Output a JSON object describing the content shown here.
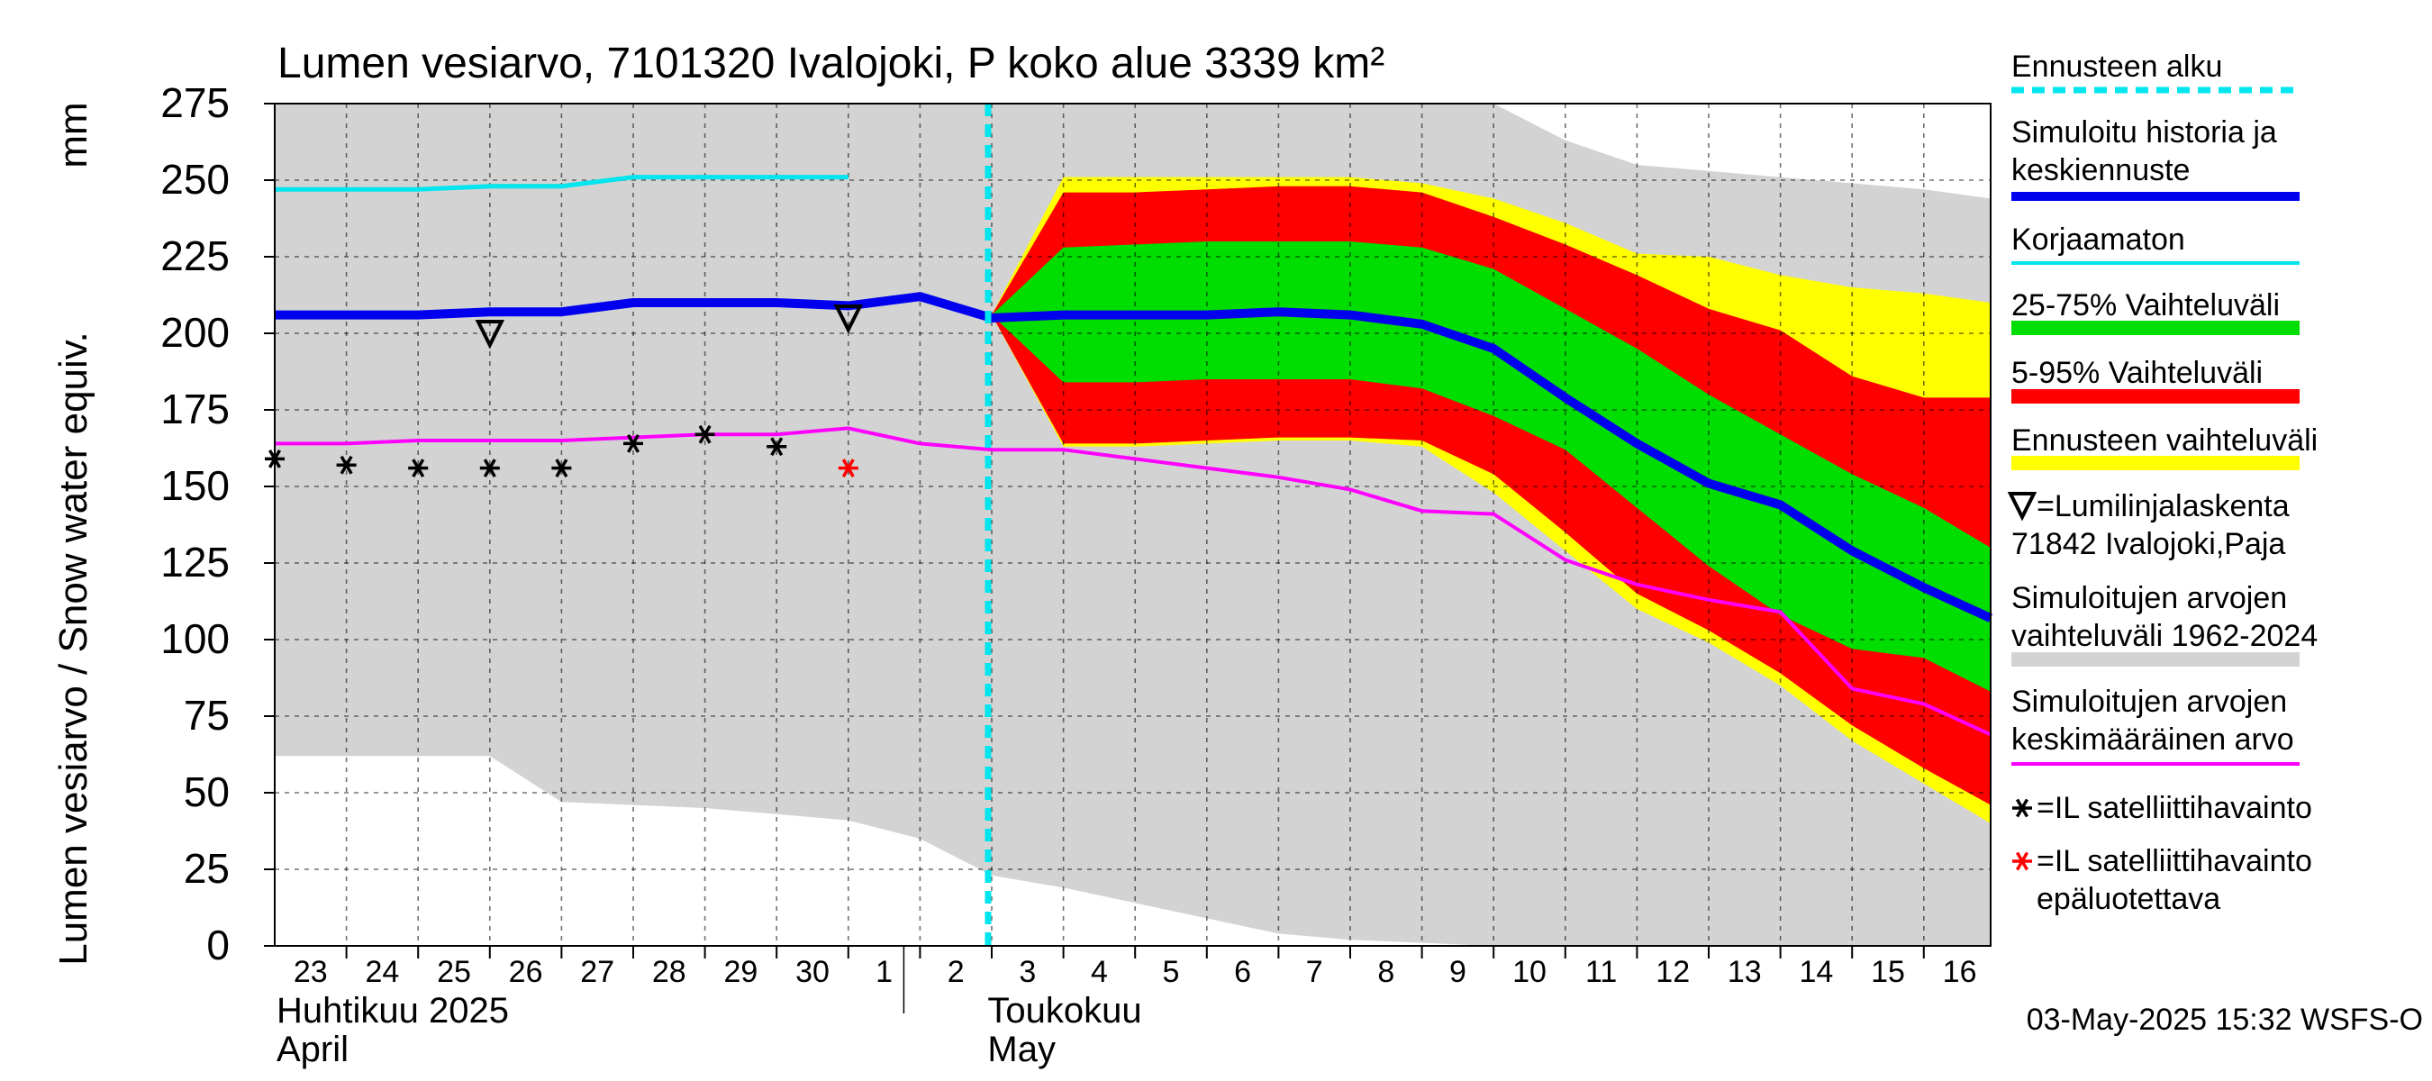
{
  "chart_data": {
    "type": "area",
    "title": "Lumen vesiarvo, 7101320 Ivalojoki, P koko alue 3339 km²",
    "ylabel": "Lumen vesiarvo / Snow water equiv.",
    "yunit": "mm",
    "ylim": [
      0,
      275
    ],
    "yticks": [
      0,
      25,
      50,
      75,
      100,
      125,
      150,
      175,
      200,
      225,
      250,
      275
    ],
    "x_days": [
      "23",
      "24",
      "25",
      "26",
      "27",
      "28",
      "29",
      "30",
      "1",
      "2",
      "3",
      "4",
      "5",
      "6",
      "7",
      "8",
      "9",
      "10",
      "11",
      "12",
      "13",
      "14",
      "15",
      "16"
    ],
    "month_labels": [
      {
        "line1": "Huhtikuu  2025",
        "line2": "April",
        "day": 0
      },
      {
        "line1": "Toukokuu",
        "line2": "May",
        "day": 9
      }
    ],
    "grid": true,
    "forecast_start_day": 10,
    "timestamp": "03-May-2025 15:32 WSFS-O",
    "legend": [
      {
        "label": "Ennusteen alku",
        "color": "#00e5ee",
        "style": "dashed"
      },
      {
        "label": "Simuloitu historia ja keskiennuste",
        "color": "#0000ee",
        "style": "thick"
      },
      {
        "label": "Korjaamaton",
        "color": "#00e5ee",
        "style": "line"
      },
      {
        "label": "25-75% Vaihteluväli",
        "color": "#00dd00",
        "style": "band"
      },
      {
        "label": "5-95% Vaihteluväli",
        "color": "#ff0000",
        "style": "band"
      },
      {
        "label": "Ennusteen vaihteluväli",
        "color": "#ffff00",
        "style": "band"
      },
      {
        "label": "∇=Lumilinjalaskenta 71842 Ivalojoki,Paja",
        "color": "#000000",
        "style": "triangle"
      },
      {
        "label": "Simuloitujen arvojen vaihteluväli 1962-2024",
        "color": "#d3d3d3",
        "style": "band"
      },
      {
        "label": "Simuloitujen arvojen keskimääräinen arvo",
        "color": "#ff00ff",
        "style": "line"
      },
      {
        "label": "=IL satelliittihavainto",
        "color": "#000000",
        "style": "star"
      },
      {
        "label": "=IL satelliittihavainto epäluotettava",
        "color": "#ff0000",
        "style": "star"
      }
    ],
    "series": {
      "hist_range": {
        "x": [
          -0.2,
          3,
          4,
          6,
          8,
          9,
          10,
          11,
          12,
          13,
          14,
          15,
          16,
          17,
          18,
          19,
          20,
          21,
          22,
          23,
          24
        ],
        "upper": [
          275,
          275,
          275,
          275,
          275,
          275,
          275,
          275,
          275,
          275,
          275,
          275,
          275,
          275,
          263,
          255,
          253,
          251,
          249,
          247,
          244
        ],
        "lower": [
          62,
          62,
          47,
          45,
          41,
          35,
          23,
          19,
          14,
          9,
          4,
          2,
          1,
          0,
          0,
          0,
          0,
          0,
          0,
          0,
          0
        ]
      },
      "forecast_range": {
        "x": [
          10,
          11,
          12,
          13,
          14,
          15,
          16,
          17,
          18,
          19,
          20,
          21,
          22,
          23,
          24
        ],
        "upper": [
          206,
          251,
          251,
          251,
          251,
          251,
          249,
          244,
          236,
          226,
          225,
          219,
          215,
          213,
          210
        ],
        "lower": [
          206,
          163,
          163,
          164,
          165,
          165,
          163,
          148,
          129,
          110,
          99,
          85,
          67,
          53,
          40
        ]
      },
      "p5_95": {
        "x": [
          10,
          11,
          12,
          13,
          14,
          15,
          16,
          17,
          18,
          19,
          20,
          21,
          22,
          23,
          24
        ],
        "upper": [
          206,
          246,
          246,
          247,
          248,
          248,
          246,
          238,
          229,
          219,
          208,
          201,
          186,
          179,
          179
        ],
        "lower": [
          206,
          164,
          164,
          165,
          166,
          166,
          165,
          154,
          135,
          115,
          103,
          89,
          72,
          58,
          46
        ]
      },
      "p25_75": {
        "x": [
          10,
          11,
          12,
          13,
          14,
          15,
          16,
          17,
          18,
          19,
          20,
          21,
          22,
          23,
          24
        ],
        "upper": [
          206,
          228,
          229,
          230,
          230,
          230,
          228,
          221,
          208,
          195,
          180,
          167,
          154,
          143,
          130
        ],
        "lower": [
          206,
          184,
          184,
          185,
          185,
          185,
          182,
          173,
          162,
          143,
          124,
          108,
          97,
          94,
          83
        ]
      },
      "median": {
        "x": [
          -0.2,
          1,
          2,
          3,
          4,
          5,
          6,
          7,
          8,
          9,
          10,
          11,
          12,
          13,
          14,
          15,
          16,
          17,
          18,
          19,
          20,
          21,
          22,
          23,
          24
        ],
        "y": [
          206,
          206,
          206,
          207,
          207,
          210,
          210,
          210,
          209,
          212,
          205,
          206,
          206,
          206,
          207,
          206,
          203,
          195,
          179,
          164,
          151,
          144,
          129,
          117,
          107
        ]
      },
      "uncorrected": {
        "x": [
          -0.2,
          1,
          2,
          3,
          4,
          5,
          6,
          7,
          8
        ],
        "y": [
          247,
          247,
          247,
          248,
          248,
          251,
          251,
          251,
          251
        ]
      },
      "mean": {
        "x": [
          -0.2,
          1,
          2,
          3,
          4,
          5,
          6,
          7,
          8,
          9,
          10,
          11,
          12,
          13,
          14,
          15,
          16,
          17,
          18,
          19,
          20,
          21,
          22,
          23,
          24
        ],
        "y": [
          164,
          164,
          165,
          165,
          165,
          166,
          167,
          167,
          169,
          164,
          162,
          162,
          159,
          156,
          153,
          149,
          142,
          141,
          126,
          118,
          113,
          109,
          84,
          79,
          69
        ]
      },
      "snowline": {
        "x": [
          3,
          8
        ],
        "y": [
          200,
          205
        ]
      },
      "satellite": {
        "x": [
          0,
          1,
          2,
          3,
          4,
          5,
          6,
          7
        ],
        "y": [
          159,
          157,
          156,
          156,
          156,
          164,
          167,
          163
        ]
      },
      "satellite_unreliable": {
        "x": [
          8
        ],
        "y": [
          156
        ]
      }
    }
  }
}
